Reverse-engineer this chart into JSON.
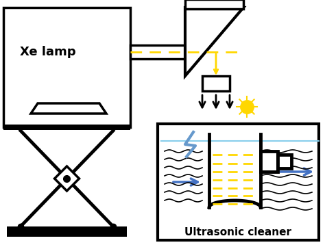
{
  "title": "",
  "background_color": "#ffffff",
  "xe_lamp_label": "Xe lamp",
  "ultrasonic_label": "Ultrasonic cleaner",
  "lw": 2.5,
  "black": "#000000",
  "yellow": "#FFD700",
  "blue": "#4472C4",
  "gray_light": "#cccccc"
}
